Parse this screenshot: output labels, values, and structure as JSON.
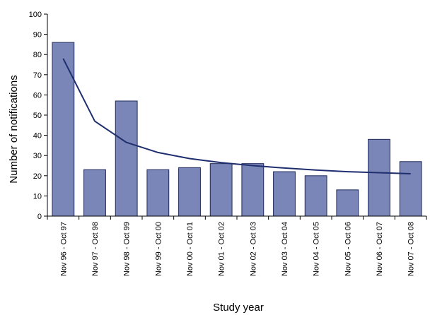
{
  "chart_data": {
    "type": "bar",
    "xlabel": "Study year",
    "ylabel": "Number of notifications",
    "ylim": [
      0,
      100
    ],
    "yticks": [
      0,
      10,
      20,
      30,
      40,
      50,
      60,
      70,
      80,
      90,
      100
    ],
    "grid": false,
    "categories": [
      "Nov 96 - Oct 97",
      "Nov 97 - Oct 98",
      "Nov 98 - Oct 99",
      "Nov 99 - Oct 00",
      "Nov 00 - Oct 01",
      "Nov 01 - Oct 02",
      "Nov 02 - Oct 03",
      "Nov 03 - Oct 04",
      "Nov 04 - Oct 05",
      "Nov 05 - Oct 06",
      "Nov 06 - Oct 07",
      "Nov 07 - Oct 08"
    ],
    "series": [
      {
        "type": "bar",
        "values": [
          86,
          23,
          57,
          23,
          24,
          26,
          26,
          22,
          20,
          13,
          38,
          27
        ]
      },
      {
        "type": "line",
        "values": [
          78,
          47,
          36.5,
          31.5,
          28.5,
          26.5,
          25,
          23.8,
          22.8,
          22,
          21.5,
          21
        ]
      }
    ],
    "colors": {
      "bar_fill": "#7b86b8",
      "bar_stroke": "#1f2a5c",
      "line": "#1f2e6e",
      "axis": "#000000"
    }
  }
}
